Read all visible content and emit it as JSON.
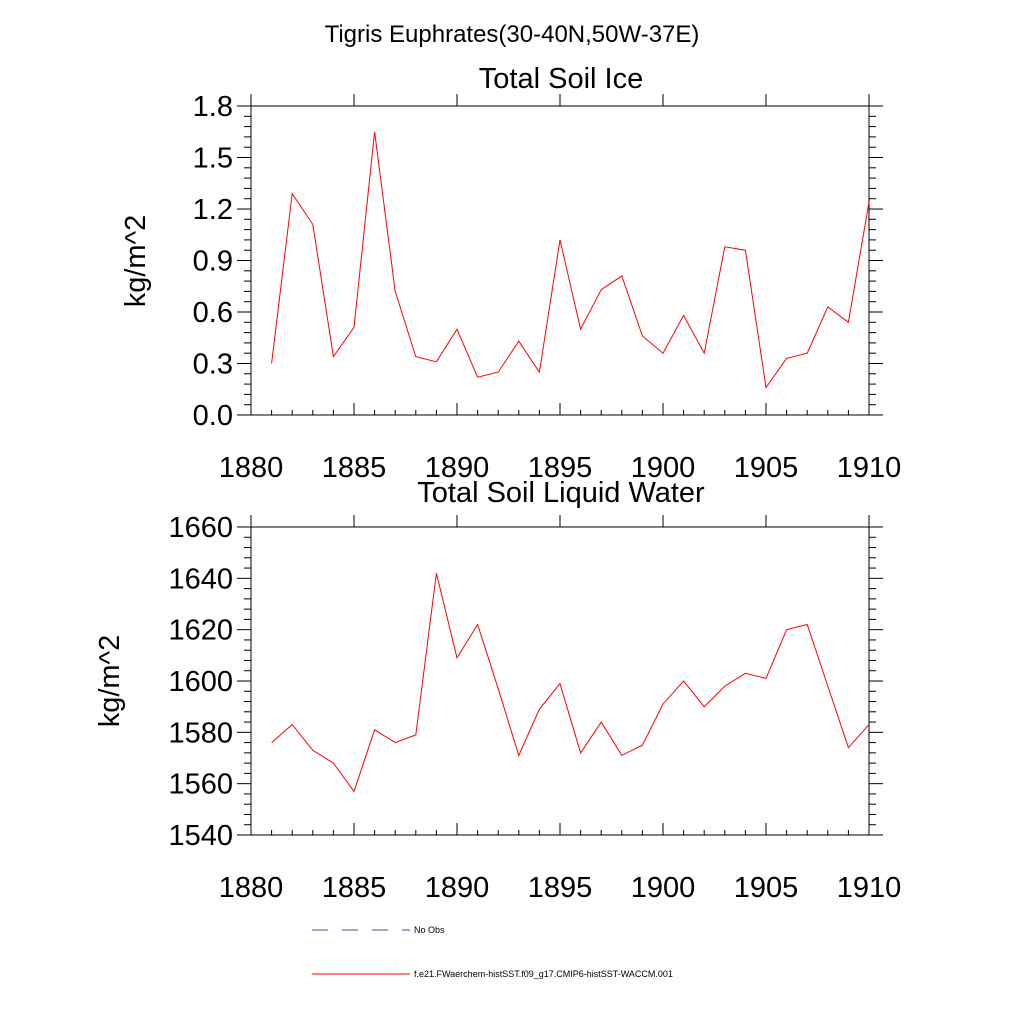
{
  "figure": {
    "title": "Tigris Euphrates(30-40N,50W-37E)"
  },
  "chart_data": [
    {
      "type": "line",
      "title": "Total Soil Ice",
      "ylabel": "kg/m^2",
      "xlim": [
        1880,
        1910
      ],
      "ylim": [
        0.0,
        1.8
      ],
      "x_ticks": [
        "1880",
        "1885",
        "1890",
        "1895",
        "1900",
        "1905",
        "1910"
      ],
      "y_ticks": [
        "0.0",
        "0.3",
        "0.6",
        "0.9",
        "1.2",
        "1.5",
        "1.8"
      ],
      "x": [
        1881,
        1882,
        1883,
        1884,
        1885,
        1886,
        1887,
        1888,
        1889,
        1890,
        1891,
        1892,
        1893,
        1894,
        1895,
        1896,
        1897,
        1898,
        1899,
        1900,
        1901,
        1902,
        1903,
        1904,
        1905,
        1906,
        1907,
        1908,
        1909,
        1910
      ],
      "series": [
        {
          "color": "#ff0000",
          "values": [
            0.3,
            1.29,
            1.11,
            0.34,
            0.51,
            1.65,
            0.72,
            0.34,
            0.31,
            0.5,
            0.22,
            0.25,
            0.43,
            0.25,
            1.02,
            0.5,
            0.73,
            0.81,
            0.46,
            0.36,
            0.58,
            0.36,
            0.98,
            0.96,
            0.16,
            0.33,
            0.36,
            0.63,
            0.54,
            1.24
          ]
        }
      ],
      "grid": false
    },
    {
      "type": "line",
      "title": "Total Soil Liquid Water",
      "ylabel": "kg/m^2",
      "xlim": [
        1880,
        1910
      ],
      "ylim": [
        1540,
        1660
      ],
      "x_ticks": [
        "1880",
        "1885",
        "1890",
        "1895",
        "1900",
        "1905",
        "1910"
      ],
      "y_ticks": [
        "1540",
        "1560",
        "1580",
        "1600",
        "1620",
        "1640",
        "1660"
      ],
      "x": [
        1881,
        1882,
        1883,
        1884,
        1885,
        1886,
        1887,
        1888,
        1889,
        1890,
        1891,
        1892,
        1893,
        1894,
        1895,
        1896,
        1897,
        1898,
        1899,
        1900,
        1901,
        1902,
        1903,
        1904,
        1905,
        1906,
        1907,
        1908,
        1909,
        1910
      ],
      "series": [
        {
          "color": "#ff0000",
          "values": [
            1576,
            1583,
            1573,
            1568,
            1557,
            1581,
            1576,
            1579,
            1642,
            1609,
            1622,
            1597,
            1571,
            1589,
            1599,
            1572,
            1584,
            1571,
            1575,
            1591,
            1600,
            1590,
            1598,
            1603,
            1601,
            1620,
            1622,
            1598,
            1574,
            1583
          ]
        }
      ],
      "grid": false
    }
  ],
  "legend": {
    "placement": "bottom",
    "entries": [
      {
        "label": "No Obs",
        "color": "#4a4a9a",
        "style": "dashed"
      },
      {
        "label": "f.e21.FWaerchem-histSST.f09_g17.CMIP6-histSST-WACCM.001",
        "color": "#ff0000",
        "style": "solid"
      }
    ]
  }
}
